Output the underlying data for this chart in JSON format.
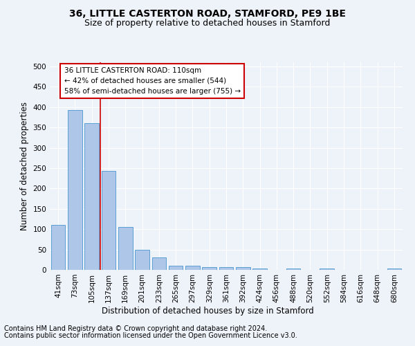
{
  "title": "36, LITTLE CASTERTON ROAD, STAMFORD, PE9 1BE",
  "subtitle": "Size of property relative to detached houses in Stamford",
  "xlabel": "Distribution of detached houses by size in Stamford",
  "ylabel": "Number of detached properties",
  "bar_labels": [
    "41sqm",
    "73sqm",
    "105sqm",
    "137sqm",
    "169sqm",
    "201sqm",
    "233sqm",
    "265sqm",
    "297sqm",
    "329sqm",
    "361sqm",
    "392sqm",
    "424sqm",
    "456sqm",
    "488sqm",
    "520sqm",
    "552sqm",
    "584sqm",
    "616sqm",
    "648sqm",
    "680sqm"
  ],
  "bar_values": [
    110,
    393,
    360,
    243,
    105,
    50,
    30,
    10,
    10,
    6,
    6,
    7,
    3,
    0,
    4,
    0,
    4,
    0,
    0,
    0,
    4
  ],
  "bar_color": "#aec6e8",
  "bar_edge_color": "#5a9fd4",
  "vline_x": 2.5,
  "vline_color": "#cc0000",
  "annotation_text": "36 LITTLE CASTERTON ROAD: 110sqm\n← 42% of detached houses are smaller (544)\n58% of semi-detached houses are larger (755) →",
  "annotation_box_color": "#ffffff",
  "annotation_box_edge": "#cc0000",
  "ylim": [
    0,
    510
  ],
  "yticks": [
    0,
    50,
    100,
    150,
    200,
    250,
    300,
    350,
    400,
    450,
    500
  ],
  "footnote1": "Contains HM Land Registry data © Crown copyright and database right 2024.",
  "footnote2": "Contains public sector information licensed under the Open Government Licence v3.0.",
  "bg_color": "#eef2f9",
  "plot_bg_color": "#eef2f9",
  "grid_color": "#ffffff",
  "title_fontsize": 10,
  "subtitle_fontsize": 9,
  "axis_label_fontsize": 8.5,
  "tick_fontsize": 7.5,
  "footnote_fontsize": 7
}
